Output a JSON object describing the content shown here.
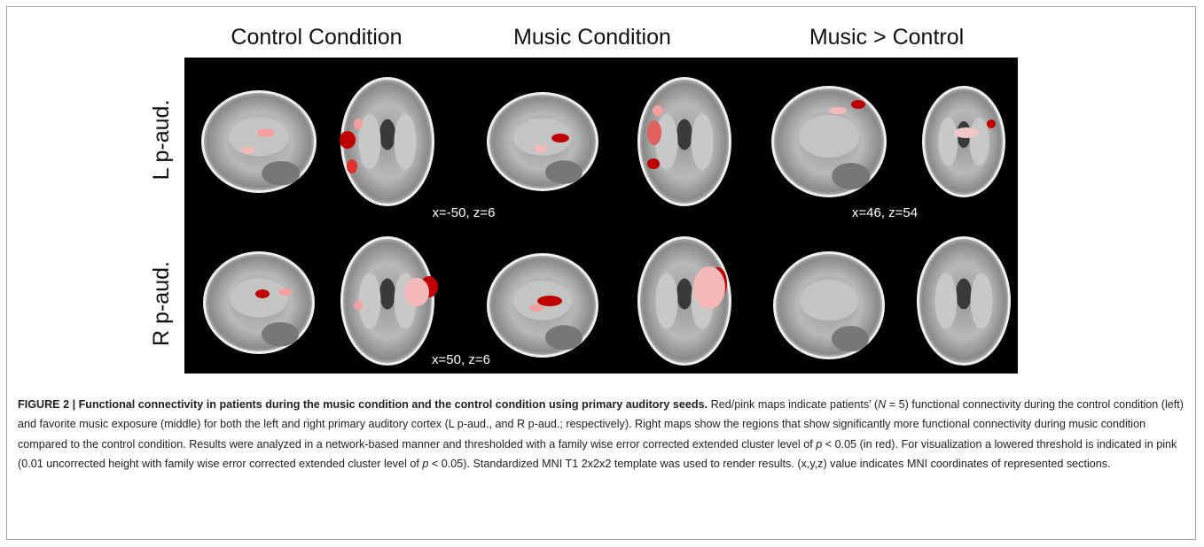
{
  "figure": {
    "columns": [
      "Control Condition",
      "Music Condition",
      "Music > Control"
    ],
    "rows": [
      "L p-aud.",
      "R p-aud."
    ],
    "coordinates": [
      "x=-50, z=6",
      "x=46, z=54",
      "x=50, z=6"
    ],
    "caption": {
      "label": "FIGURE 2 | Functional connectivity in patients during the music condition and the control condition using primary auditory seeds.",
      "parts": [
        " Red/pink maps indicate patients’ (",
        "N",
        " = 5) functional connectivity during the control condition (left) and favorite music exposure (middle) for both the left and right primary auditory cortex (L p-aud., and R p-aud.; respectively). Right maps show the regions that show significantly more functional connectivity during music condition compared to the control condition. Results were analyzed in a network-based manner and thresholded with a family wise error corrected extended cluster level of ",
        "p",
        " < 0.05 (in red). For visualization a lowered threshold is indicated in pink (0.01 uncorrected height with family wise error corrected extended cluster level of ",
        "p",
        " < 0.05). Standardized MNI T1 2x2x2 template was used to render results. (x,y,z) value indicates MNI coordinates of represented sections."
      ]
    }
  }
}
